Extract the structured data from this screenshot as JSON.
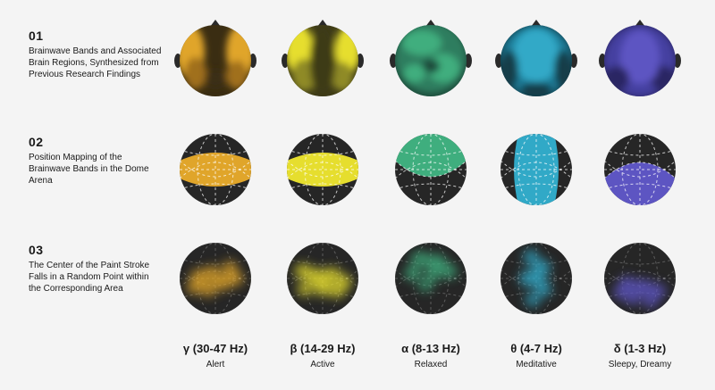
{
  "rows": [
    {
      "number": "01",
      "text": "Brainwave Bands and Associated Brain Regions, Synthesized from Previous Research Findings"
    },
    {
      "number": "02",
      "text": "Position Mapping of the Brainwave Bands in the Dome Arena"
    },
    {
      "number": "03",
      "text": "The Center of the Paint Stroke Falls in a Random Point within the Corresponding Area"
    }
  ],
  "bands": [
    {
      "name": "γ (30-47 Hz)",
      "state": "Alert",
      "color": "#e0a52a",
      "dark": "#3a2d12",
      "mid": "#a06f1c",
      "region": "horizontal-band"
    },
    {
      "name": "β (14-29 Hz)",
      "state": "Active",
      "color": "#e6de2e",
      "dark": "#3d3a18",
      "mid": "#8f8a26",
      "region": "horizontal-band"
    },
    {
      "name": "α (8-13 Hz)",
      "state": "Relaxed",
      "color": "#3fae7e",
      "dark": "#1d4a3a",
      "mid": "#2f7d5e",
      "region": "top-cap"
    },
    {
      "name": "θ (4-7 Hz)",
      "state": "Meditative",
      "color": "#31a9c7",
      "dark": "#123e4a",
      "mid": "#1f7d99",
      "region": "vertical-band"
    },
    {
      "name": "δ (1-3 Hz)",
      "state": "Sleepy, Dreamy",
      "color": "#5d55c2",
      "dark": "#2c2763",
      "mid": "#4540a0",
      "region": "bottom-cap"
    }
  ]
}
